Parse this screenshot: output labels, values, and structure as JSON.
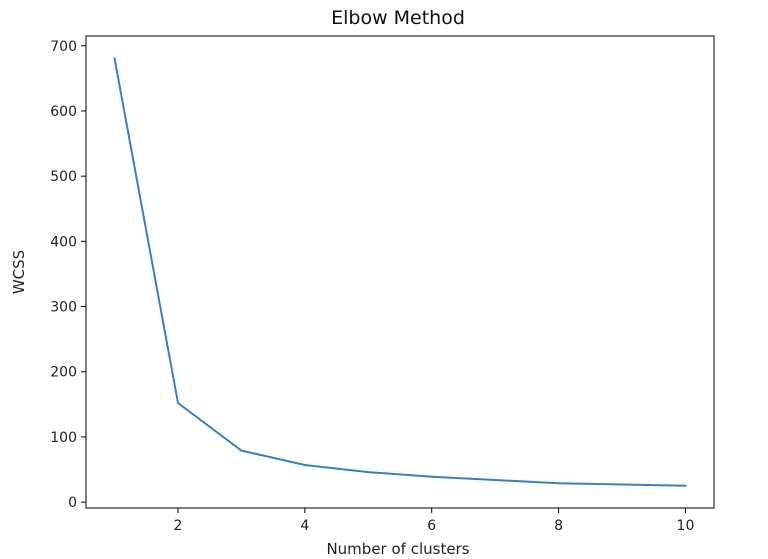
{
  "chart_data": {
    "type": "line",
    "title": "Elbow Method",
    "xlabel": "Number of clusters",
    "ylabel": "WCSS",
    "x": [
      1,
      2,
      3,
      4,
      5,
      6,
      7,
      8,
      9,
      10
    ],
    "series": [
      {
        "values": [
          681,
          152,
          79,
          57,
          46,
          39,
          34,
          29,
          27,
          25
        ]
      }
    ],
    "xlim": [
      0.55,
      10.45
    ],
    "ylim": [
      -9,
      715
    ],
    "xticks": [
      2,
      4,
      6,
      8,
      10
    ],
    "yticks": [
      0,
      100,
      200,
      300,
      400,
      500,
      600,
      700
    ],
    "grid": false,
    "line_color": "#3a80b8"
  }
}
